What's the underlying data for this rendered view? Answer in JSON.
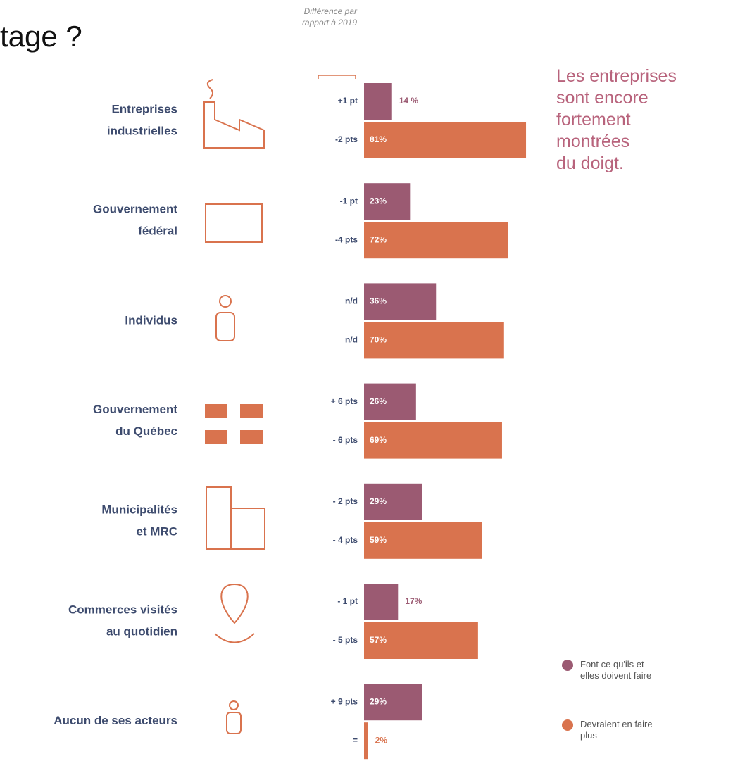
{
  "chart_data": {
    "type": "bar",
    "orientation": "horizontal",
    "title": "tage ?",
    "column_header": "Différence par rapport à 2019",
    "annotation": [
      "Les entreprises",
      "sont encore",
      "fortement",
      "montrées",
      "du doigt."
    ],
    "categories": [
      [
        "Entreprises",
        "industrielles"
      ],
      [
        "Gouvernement",
        "fédéral"
      ],
      [
        "Individus"
      ],
      [
        "Gouvernement",
        "du Québec"
      ],
      [
        "Municipalités",
        "et MRC"
      ],
      [
        "Commerces visités",
        "au quotidien"
      ],
      [
        "Aucun de ses acteurs"
      ]
    ],
    "series": [
      {
        "name": "Font ce qu'ils et elles doivent faire",
        "color": "#9b5a72",
        "values": [
          14,
          23,
          36,
          26,
          29,
          17,
          29
        ],
        "value_labels": [
          "14 %",
          "23%",
          "36%",
          "26%",
          "29%",
          "17%",
          "29%"
        ],
        "differences": [
          "+1 pt",
          "-1 pt",
          "n/d",
          "+ 6 pts",
          "- 2 pts",
          "- 1 pt",
          "+ 9 pts"
        ]
      },
      {
        "name": "Devraient en faire plus",
        "color": "#d9734e",
        "values": [
          81,
          72,
          70,
          69,
          59,
          57,
          2
        ],
        "value_labels": [
          "81%",
          "72%",
          "70%",
          "69%",
          "59%",
          "57%",
          "2%"
        ],
        "differences": [
          "-2 pts",
          "-4 pts",
          "n/d",
          "- 6 pts",
          "- 4 pts",
          "- 5 pts",
          "="
        ]
      }
    ],
    "legend": "bottom-right"
  }
}
